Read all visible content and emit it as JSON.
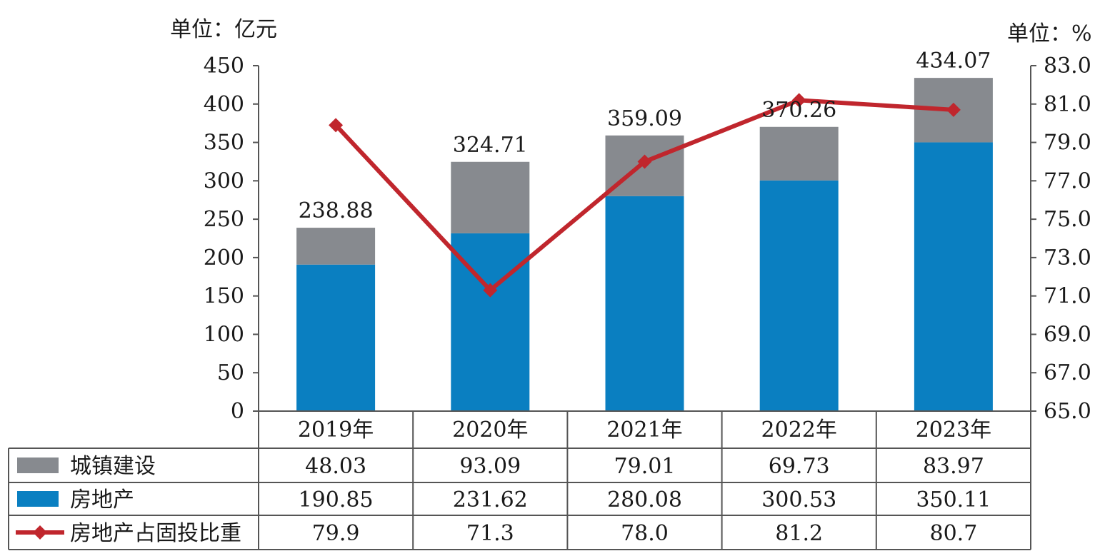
{
  "chart_data": {
    "type": "bar",
    "stacked": true,
    "categories": [
      "2019年",
      "2020年",
      "2021年",
      "2022年",
      "2023年"
    ],
    "series": [
      {
        "name": "城镇建设",
        "kind": "bar",
        "axis": "left",
        "color": "#878a8f",
        "values": [
          48.03,
          93.09,
          79.01,
          69.73,
          83.97
        ]
      },
      {
        "name": "房地产",
        "kind": "bar",
        "axis": "left",
        "color": "#0a7fc1",
        "values": [
          190.85,
          231.62,
          280.08,
          300.53,
          350.11
        ]
      },
      {
        "name": "房地产占固投比重",
        "kind": "line",
        "axis": "right",
        "color": "#c0262d",
        "values": [
          79.9,
          71.3,
          78.0,
          81.2,
          80.7
        ]
      }
    ],
    "totals": [
      238.88,
      324.71,
      359.09,
      370.26,
      434.07
    ],
    "total_labels": [
      "238.88",
      "324.71",
      "359.09",
      "370.26",
      "434.07"
    ],
    "left_unit": "单位：亿元",
    "right_unit": "单位：%",
    "ylim_left": [
      0,
      450
    ],
    "ylim_right": [
      65.0,
      83.0
    ],
    "yticks_left": [
      "0",
      "50",
      "100",
      "150",
      "200",
      "250",
      "300",
      "350",
      "400",
      "450"
    ],
    "yticks_right": [
      "65.0",
      "67.0",
      "69.0",
      "71.0",
      "73.0",
      "75.0",
      "77.0",
      "79.0",
      "81.0",
      "83.0"
    ],
    "data_table": {
      "rows": [
        {
          "label": "城镇建设",
          "cells": [
            "48.03",
            "93.09",
            "79.01",
            "69.73",
            "83.97"
          ]
        },
        {
          "label": "房地产",
          "cells": [
            "190.85",
            "231.62",
            "280.08",
            "300.53",
            "350.11"
          ]
        },
        {
          "label": "房地产占固投比重",
          "cells": [
            "79.9",
            "71.3",
            "78.0",
            "81.2",
            "80.7"
          ]
        }
      ]
    },
    "grid": false,
    "legend": "data-table-left"
  }
}
